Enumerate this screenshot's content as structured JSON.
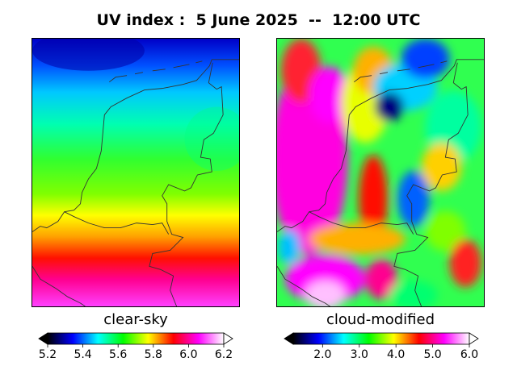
{
  "figure": {
    "title": "UV index :  5 June 2025  --  12:00 UTC"
  },
  "panels": [
    {
      "caption": "clear-sky",
      "colorbar": {
        "min": 5.2,
        "max": 6.2,
        "ticks": [
          "5.2",
          "5.4",
          "5.6",
          "5.8",
          "6.0",
          "6.2"
        ],
        "tick_values": [
          5.2,
          5.4,
          5.6,
          5.8,
          6.0,
          6.2
        ],
        "extend": "both"
      }
    },
    {
      "caption": "cloud-modified",
      "colorbar": {
        "min": 1.2,
        "max": 6.0,
        "ticks": [
          "2.0",
          "3.0",
          "4.0",
          "5.0",
          "6.0"
        ],
        "tick_values": [
          2.0,
          3.0,
          4.0,
          5.0,
          6.0
        ],
        "extend": "both"
      }
    }
  ],
  "colormap": [
    "#000000",
    "#0000ff",
    "#00ffff",
    "#00ff00",
    "#ffff00",
    "#ff0000",
    "#ff00ff",
    "#ffffff"
  ],
  "colors": {
    "border_line": "#333333",
    "frame": "#000000"
  }
}
